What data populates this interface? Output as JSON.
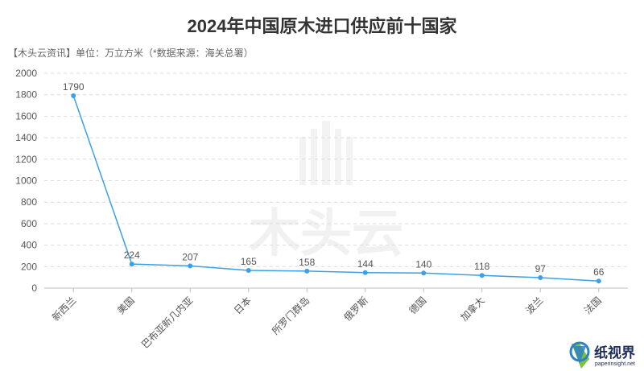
{
  "chart_data": {
    "type": "line",
    "title": "2024年中国原木进口供应前十国家",
    "subtitle": "【木头云资讯】单位：万立方米（*数据来源：海关总署）",
    "categories": [
      "新西兰",
      "美国",
      "巴布亚新几内亚",
      "日本",
      "所罗门群岛",
      "俄罗斯",
      "德国",
      "加拿大",
      "波兰",
      "法国"
    ],
    "series": [
      {
        "values": [
          1790,
          224,
          207,
          165,
          158,
          144,
          140,
          118,
          97,
          66
        ],
        "color": "#3aa0e8"
      }
    ],
    "ylim": [
      0,
      2000
    ],
    "yticks": [
      0,
      200,
      400,
      600,
      800,
      1000,
      1200,
      1400,
      1600,
      1800,
      2000
    ],
    "grid": true,
    "legend": "none",
    "xlabel": "",
    "ylabel": ""
  },
  "watermark": {
    "text": "木头云"
  },
  "logo": {
    "name": "纸视界",
    "url": "paperinsight.net"
  },
  "colors": {
    "grid": "#dcdcdc",
    "axis": "#bfbfbf",
    "title": "#333333"
  }
}
